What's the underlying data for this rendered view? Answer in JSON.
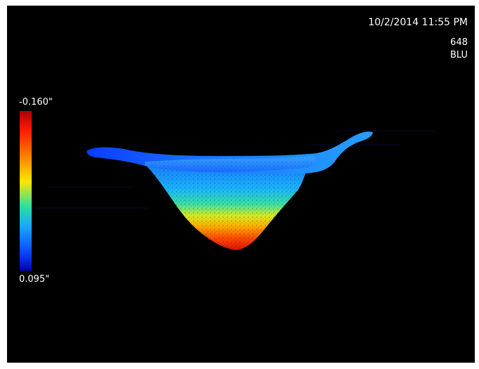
{
  "overlay": {
    "datetime": "10/2/2014  11:55 PM",
    "probe_id": "648",
    "probe_tip": "BLU"
  },
  "color_scale": {
    "max_label": "-0.160\"",
    "min_label": "0.095\"",
    "colors": [
      "#b00000",
      "#ff1a00",
      "#ff8a00",
      "#ffe600",
      "#28e0a0",
      "#1aa8ff",
      "#0a4cff",
      "#0000b8"
    ]
  },
  "surface_view": {
    "colors": {
      "background": "#000000",
      "rim": "#1a6cff",
      "bottom": "#ff1a00"
    }
  }
}
